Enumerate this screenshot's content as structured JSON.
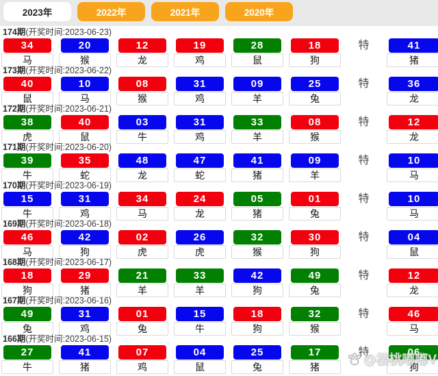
{
  "tabs": [
    {
      "label": "2023年",
      "active": true
    },
    {
      "label": "2022年",
      "active": false
    },
    {
      "label": "2021年",
      "active": false
    },
    {
      "label": "2020年",
      "active": false
    }
  ],
  "te_label": "特",
  "watermark": {
    "icon": "paw-icon",
    "text": "@樱桃嘟嘟V"
  },
  "colors": {
    "red": "#f2000d",
    "blue": "#0707ee",
    "green": "#028002",
    "tab_orange": "#f8a51d"
  },
  "draws": [
    {
      "period": "174期",
      "time": "(开奖时间:2023-06-23)",
      "balls": [
        {
          "num": "34",
          "color": "red",
          "zodiac": "马"
        },
        {
          "num": "20",
          "color": "blue",
          "zodiac": "猴"
        },
        {
          "num": "12",
          "color": "red",
          "zodiac": "龙"
        },
        {
          "num": "19",
          "color": "red",
          "zodiac": "鸡"
        },
        {
          "num": "28",
          "color": "green",
          "zodiac": "鼠"
        },
        {
          "num": "18",
          "color": "red",
          "zodiac": "狗"
        }
      ],
      "special": {
        "num": "41",
        "color": "blue",
        "zodiac": "猪"
      }
    },
    {
      "period": "173期",
      "time": "(开奖时间:2023-06-22)",
      "balls": [
        {
          "num": "40",
          "color": "red",
          "zodiac": "鼠"
        },
        {
          "num": "10",
          "color": "blue",
          "zodiac": "马"
        },
        {
          "num": "08",
          "color": "red",
          "zodiac": "猴"
        },
        {
          "num": "31",
          "color": "blue",
          "zodiac": "鸡"
        },
        {
          "num": "09",
          "color": "blue",
          "zodiac": "羊"
        },
        {
          "num": "25",
          "color": "blue",
          "zodiac": "兔"
        }
      ],
      "special": {
        "num": "36",
        "color": "blue",
        "zodiac": "龙"
      }
    },
    {
      "period": "172期",
      "time": "(开奖时间:2023-06-21)",
      "balls": [
        {
          "num": "38",
          "color": "green",
          "zodiac": "虎"
        },
        {
          "num": "40",
          "color": "red",
          "zodiac": "鼠"
        },
        {
          "num": "03",
          "color": "blue",
          "zodiac": "牛"
        },
        {
          "num": "31",
          "color": "blue",
          "zodiac": "鸡"
        },
        {
          "num": "33",
          "color": "green",
          "zodiac": "羊"
        },
        {
          "num": "08",
          "color": "red",
          "zodiac": "猴"
        }
      ],
      "special": {
        "num": "12",
        "color": "red",
        "zodiac": "龙"
      }
    },
    {
      "period": "171期",
      "time": "(开奖时间:2023-06-20)",
      "balls": [
        {
          "num": "39",
          "color": "green",
          "zodiac": "牛"
        },
        {
          "num": "35",
          "color": "red",
          "zodiac": "蛇"
        },
        {
          "num": "48",
          "color": "blue",
          "zodiac": "龙"
        },
        {
          "num": "47",
          "color": "blue",
          "zodiac": "蛇"
        },
        {
          "num": "41",
          "color": "blue",
          "zodiac": "猪"
        },
        {
          "num": "09",
          "color": "blue",
          "zodiac": "羊"
        }
      ],
      "special": {
        "num": "10",
        "color": "blue",
        "zodiac": "马"
      }
    },
    {
      "period": "170期",
      "time": "(开奖时间:2023-06-19)",
      "balls": [
        {
          "num": "15",
          "color": "blue",
          "zodiac": "牛"
        },
        {
          "num": "31",
          "color": "blue",
          "zodiac": "鸡"
        },
        {
          "num": "34",
          "color": "red",
          "zodiac": "马"
        },
        {
          "num": "24",
          "color": "red",
          "zodiac": "龙"
        },
        {
          "num": "05",
          "color": "green",
          "zodiac": "猪"
        },
        {
          "num": "01",
          "color": "red",
          "zodiac": "兔"
        }
      ],
      "special": {
        "num": "10",
        "color": "blue",
        "zodiac": "马"
      }
    },
    {
      "period": "169期",
      "time": "(开奖时间:2023-06-18)",
      "balls": [
        {
          "num": "46",
          "color": "red",
          "zodiac": "马"
        },
        {
          "num": "42",
          "color": "blue",
          "zodiac": "狗"
        },
        {
          "num": "02",
          "color": "red",
          "zodiac": "虎"
        },
        {
          "num": "26",
          "color": "blue",
          "zodiac": "虎"
        },
        {
          "num": "32",
          "color": "green",
          "zodiac": "猴"
        },
        {
          "num": "30",
          "color": "red",
          "zodiac": "狗"
        }
      ],
      "special": {
        "num": "04",
        "color": "blue",
        "zodiac": "鼠"
      }
    },
    {
      "period": "168期",
      "time": "(开奖时间:2023-06-17)",
      "balls": [
        {
          "num": "18",
          "color": "red",
          "zodiac": "狗"
        },
        {
          "num": "29",
          "color": "red",
          "zodiac": "猪"
        },
        {
          "num": "21",
          "color": "green",
          "zodiac": "羊"
        },
        {
          "num": "33",
          "color": "green",
          "zodiac": "羊"
        },
        {
          "num": "42",
          "color": "blue",
          "zodiac": "狗"
        },
        {
          "num": "49",
          "color": "green",
          "zodiac": "兔"
        }
      ],
      "special": {
        "num": "12",
        "color": "red",
        "zodiac": "龙"
      }
    },
    {
      "period": "167期",
      "time": "(开奖时间:2023-06-16)",
      "balls": [
        {
          "num": "49",
          "color": "green",
          "zodiac": "兔"
        },
        {
          "num": "31",
          "color": "blue",
          "zodiac": "鸡"
        },
        {
          "num": "01",
          "color": "red",
          "zodiac": "兔"
        },
        {
          "num": "15",
          "color": "blue",
          "zodiac": "牛"
        },
        {
          "num": "18",
          "color": "red",
          "zodiac": "狗"
        },
        {
          "num": "32",
          "color": "green",
          "zodiac": "猴"
        }
      ],
      "special": {
        "num": "46",
        "color": "red",
        "zodiac": "马"
      }
    },
    {
      "period": "166期",
      "time": "(开奖时间:2023-06-15)",
      "balls": [
        {
          "num": "27",
          "color": "green",
          "zodiac": "牛"
        },
        {
          "num": "41",
          "color": "blue",
          "zodiac": "猪"
        },
        {
          "num": "07",
          "color": "red",
          "zodiac": "鸡"
        },
        {
          "num": "04",
          "color": "blue",
          "zodiac": "鼠"
        },
        {
          "num": "25",
          "color": "blue",
          "zodiac": "兔"
        },
        {
          "num": "17",
          "color": "green",
          "zodiac": "猪"
        }
      ],
      "special": {
        "num": "06",
        "color": "green",
        "zodiac": "狗"
      }
    }
  ]
}
